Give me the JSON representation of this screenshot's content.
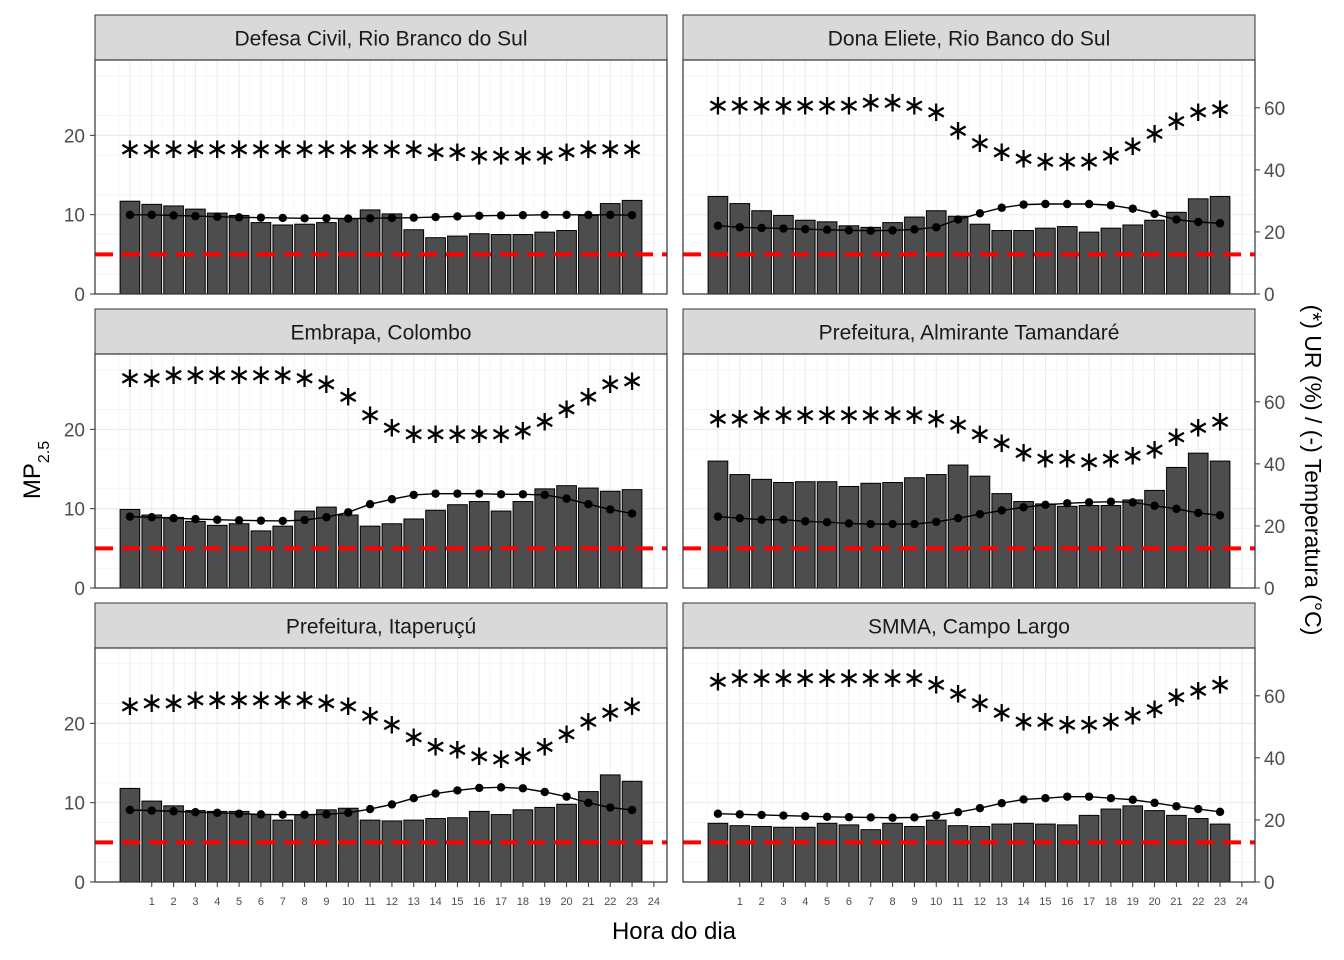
{
  "figure": {
    "xlabel": "Hora do dia",
    "ylabel_main": "MP",
    "ylabel_sub": "2.5",
    "y2label": "(*) UR (%) / (-) Temperatura (°C)",
    "reference_line": 5,
    "reference_color": "#ff0000",
    "bar_color": "#4d4d4d",
    "strip_color": "#d9d9d9"
  },
  "chart_data": [
    {
      "type": "bar",
      "title": "Defesa Civil, Rio Branco do Sul",
      "x": [
        0,
        1,
        2,
        3,
        4,
        5,
        6,
        7,
        8,
        9,
        10,
        11,
        12,
        13,
        14,
        15,
        16,
        17,
        18,
        19,
        20,
        21,
        22,
        23
      ],
      "pm25": [
        11.7,
        11.3,
        11.1,
        10.7,
        10.2,
        9.9,
        9.0,
        8.7,
        8.8,
        9.0,
        9.5,
        10.6,
        10.1,
        8.1,
        7.1,
        7.3,
        7.6,
        7.5,
        7.5,
        7.8,
        8.0,
        9.9,
        11.4,
        11.8
      ],
      "ur": [
        47,
        47,
        47,
        47,
        47,
        47,
        47,
        47,
        47,
        47,
        47,
        47,
        47,
        47,
        46,
        46,
        45,
        45,
        45,
        45,
        46,
        47,
        47,
        47
      ],
      "temp": [
        25.5,
        25.5,
        25.3,
        25.1,
        24.9,
        24.7,
        24.6,
        24.5,
        24.4,
        24.4,
        24.3,
        24.4,
        24.5,
        24.6,
        24.8,
        25.0,
        25.2,
        25.3,
        25.4,
        25.5,
        25.5,
        25.5,
        25.5,
        25.4
      ],
      "ylim": [
        0,
        29.5
      ],
      "y2lim": [
        0,
        75.4
      ],
      "x_ticks": [
        "1",
        "2",
        "3",
        "4",
        "5",
        "6",
        "7",
        "8",
        "9",
        "10",
        "11",
        "12",
        "13",
        "14",
        "15",
        "16",
        "17",
        "18",
        "19",
        "20",
        "21",
        "22",
        "23",
        "24"
      ]
    },
    {
      "type": "bar",
      "title": "Dona Eliete, Rio Banco do Sul",
      "x": [
        0,
        1,
        2,
        3,
        4,
        5,
        6,
        7,
        8,
        9,
        10,
        11,
        12,
        13,
        14,
        15,
        16,
        17,
        18,
        19,
        20,
        21,
        22,
        23
      ],
      "pm25": [
        12.3,
        11.4,
        10.5,
        9.9,
        9.3,
        9.1,
        8.6,
        8.4,
        9.0,
        9.7,
        10.5,
        9.8,
        8.8,
        8.0,
        8.0,
        8.3,
        8.5,
        7.8,
        8.3,
        8.7,
        9.3,
        10.3,
        12.0,
        12.3
      ],
      "ur": [
        61,
        61,
        61,
        61,
        61,
        61,
        61,
        62,
        62,
        61,
        59,
        53,
        49,
        46,
        44,
        43,
        43,
        43,
        45,
        48,
        52,
        56,
        59,
        60
      ],
      "temp": [
        22,
        21.5,
        21.3,
        21.1,
        20.9,
        20.7,
        20.5,
        20.4,
        20.5,
        20.8,
        21.5,
        24,
        26,
        27.8,
        28.8,
        29,
        29,
        29,
        28.6,
        27.5,
        25.8,
        24,
        23.2,
        22.8
      ],
      "ylim": [
        0,
        29.5
      ],
      "y2lim": [
        0,
        75.4
      ],
      "x_ticks": [
        "1",
        "2",
        "3",
        "4",
        "5",
        "6",
        "7",
        "8",
        "9",
        "10",
        "11",
        "12",
        "13",
        "14",
        "15",
        "16",
        "17",
        "18",
        "19",
        "20",
        "21",
        "22",
        "23",
        "24"
      ]
    },
    {
      "type": "bar",
      "title": "Embrapa, Colombo",
      "x": [
        0,
        1,
        2,
        3,
        4,
        5,
        6,
        7,
        8,
        9,
        10,
        11,
        12,
        13,
        14,
        15,
        16,
        17,
        18,
        19,
        20,
        21,
        22,
        23
      ],
      "pm25": [
        9.9,
        9.2,
        8.9,
        8.4,
        7.9,
        8.1,
        7.2,
        7.8,
        9.7,
        10.2,
        9.2,
        7.8,
        8.1,
        8.7,
        9.8,
        10.5,
        10.9,
        9.7,
        10.9,
        12.5,
        12.9,
        12.6,
        12.2,
        12.4
      ],
      "ur": [
        68,
        68,
        69,
        69,
        69,
        69,
        69,
        69,
        68,
        66,
        62,
        56,
        52,
        50,
        50,
        50,
        50,
        50,
        51,
        54,
        58,
        62,
        66,
        67
      ],
      "temp": [
        23,
        22.8,
        22.5,
        22.2,
        22,
        21.8,
        21.7,
        21.6,
        21.9,
        22.8,
        24.4,
        27,
        28.6,
        30,
        30.4,
        30.4,
        30.4,
        30.2,
        30.2,
        30,
        28.8,
        27,
        25.3,
        24
      ],
      "ylim": [
        0,
        29.5
      ],
      "y2lim": [
        0,
        75.4
      ],
      "x_ticks": [
        "1",
        "2",
        "3",
        "4",
        "5",
        "6",
        "7",
        "8",
        "9",
        "10",
        "11",
        "12",
        "13",
        "14",
        "15",
        "16",
        "17",
        "18",
        "19",
        "20",
        "21",
        "22",
        "23",
        "24"
      ]
    },
    {
      "type": "bar",
      "title": "Prefeitura, Almirante Tamandaré",
      "x": [
        0,
        1,
        2,
        3,
        4,
        5,
        6,
        7,
        8,
        9,
        10,
        11,
        12,
        13,
        14,
        15,
        16,
        17,
        18,
        19,
        20,
        21,
        22,
        23
      ],
      "pm25": [
        16.0,
        14.3,
        13.7,
        13.3,
        13.4,
        13.4,
        12.8,
        13.2,
        13.3,
        13.9,
        14.3,
        15.5,
        14.1,
        11.9,
        10.9,
        10.6,
        10.3,
        10.4,
        10.4,
        11.1,
        12.3,
        15.2,
        17.0,
        16.0
      ],
      "ur": [
        55,
        55,
        56,
        56,
        56,
        56,
        56,
        56,
        56,
        56,
        55,
        53,
        50,
        47,
        44,
        42,
        42,
        41,
        42,
        43,
        45,
        49,
        52,
        54
      ],
      "temp": [
        23,
        22.5,
        22,
        22,
        21.5,
        21.2,
        20.8,
        20.6,
        20.6,
        20.6,
        21.3,
        22.5,
        23.8,
        25,
        26,
        26.8,
        27.3,
        27.6,
        27.8,
        27.6,
        26.5,
        25.5,
        24.2,
        23.4
      ],
      "ylim": [
        0,
        29.5
      ],
      "y2lim": [
        0,
        75.4
      ],
      "x_ticks": [
        "1",
        "2",
        "3",
        "4",
        "5",
        "6",
        "7",
        "8",
        "9",
        "10",
        "11",
        "12",
        "13",
        "14",
        "15",
        "16",
        "17",
        "18",
        "19",
        "20",
        "21",
        "22",
        "23",
        "24"
      ]
    },
    {
      "type": "bar",
      "title": "Prefeitura, Itaperuçú",
      "x": [
        0,
        1,
        2,
        3,
        4,
        5,
        6,
        7,
        8,
        9,
        10,
        11,
        12,
        13,
        14,
        15,
        16,
        17,
        18,
        19,
        20,
        21,
        22,
        23
      ],
      "pm25": [
        11.8,
        10.2,
        9.6,
        9.0,
        8.9,
        8.9,
        8.5,
        7.8,
        8.5,
        9.1,
        9.3,
        7.8,
        7.7,
        7.8,
        8.0,
        8.1,
        8.9,
        8.5,
        9.1,
        9.4,
        9.8,
        11.4,
        13.5,
        12.7
      ],
      "ur": [
        57,
        58,
        58,
        59,
        59,
        59,
        59,
        59,
        59,
        58,
        57,
        54,
        51,
        47,
        44,
        43,
        41,
        40,
        41,
        44,
        48,
        52,
        55,
        57
      ],
      "temp": [
        23.2,
        23,
        22.8,
        22.5,
        22.3,
        22,
        21.8,
        21.7,
        21.7,
        21.8,
        22.3,
        23.5,
        25,
        27,
        28.5,
        29.5,
        30.3,
        30.5,
        30.2,
        29,
        27.5,
        25.5,
        24,
        23.2
      ],
      "ylim": [
        0,
        29.5
      ],
      "y2lim": [
        0,
        75.4
      ],
      "x_ticks": [
        "1",
        "2",
        "3",
        "4",
        "5",
        "6",
        "7",
        "8",
        "9",
        "10",
        "11",
        "12",
        "13",
        "14",
        "15",
        "16",
        "17",
        "18",
        "19",
        "20",
        "21",
        "22",
        "23",
        "24"
      ]
    },
    {
      "type": "bar",
      "title": "SMMA, Campo Largo",
      "x": [
        0,
        1,
        2,
        3,
        4,
        5,
        6,
        7,
        8,
        9,
        10,
        11,
        12,
        13,
        14,
        15,
        16,
        17,
        18,
        19,
        20,
        21,
        22,
        23
      ],
      "pm25": [
        7.4,
        7.1,
        7.0,
        6.9,
        6.9,
        7.4,
        7.2,
        6.6,
        7.4,
        7.0,
        7.8,
        7.1,
        7.0,
        7.3,
        7.4,
        7.3,
        7.2,
        8.4,
        9.2,
        9.6,
        9.0,
        8.4,
        8.0,
        7.3
      ],
      "ur": [
        65,
        66,
        66,
        66,
        66,
        66,
        66,
        66,
        66,
        66,
        64,
        61,
        58,
        55,
        52,
        52,
        51,
        51,
        52,
        54,
        56,
        60,
        62,
        64
      ],
      "temp": [
        22,
        21.8,
        21.6,
        21.4,
        21.2,
        21,
        20.9,
        20.8,
        20.7,
        20.8,
        21.5,
        22.5,
        23.8,
        25.4,
        26.6,
        27,
        27.5,
        27.5,
        27,
        26.5,
        25.5,
        24.4,
        23.5,
        22.6
      ],
      "ylim": [
        0,
        29.5
      ],
      "y2lim": [
        0,
        75.4
      ],
      "x_ticks": [
        "1",
        "2",
        "3",
        "4",
        "5",
        "6",
        "7",
        "8",
        "9",
        "10",
        "11",
        "12",
        "13",
        "14",
        "15",
        "16",
        "17",
        "18",
        "19",
        "20",
        "21",
        "22",
        "23",
        "24"
      ]
    }
  ]
}
